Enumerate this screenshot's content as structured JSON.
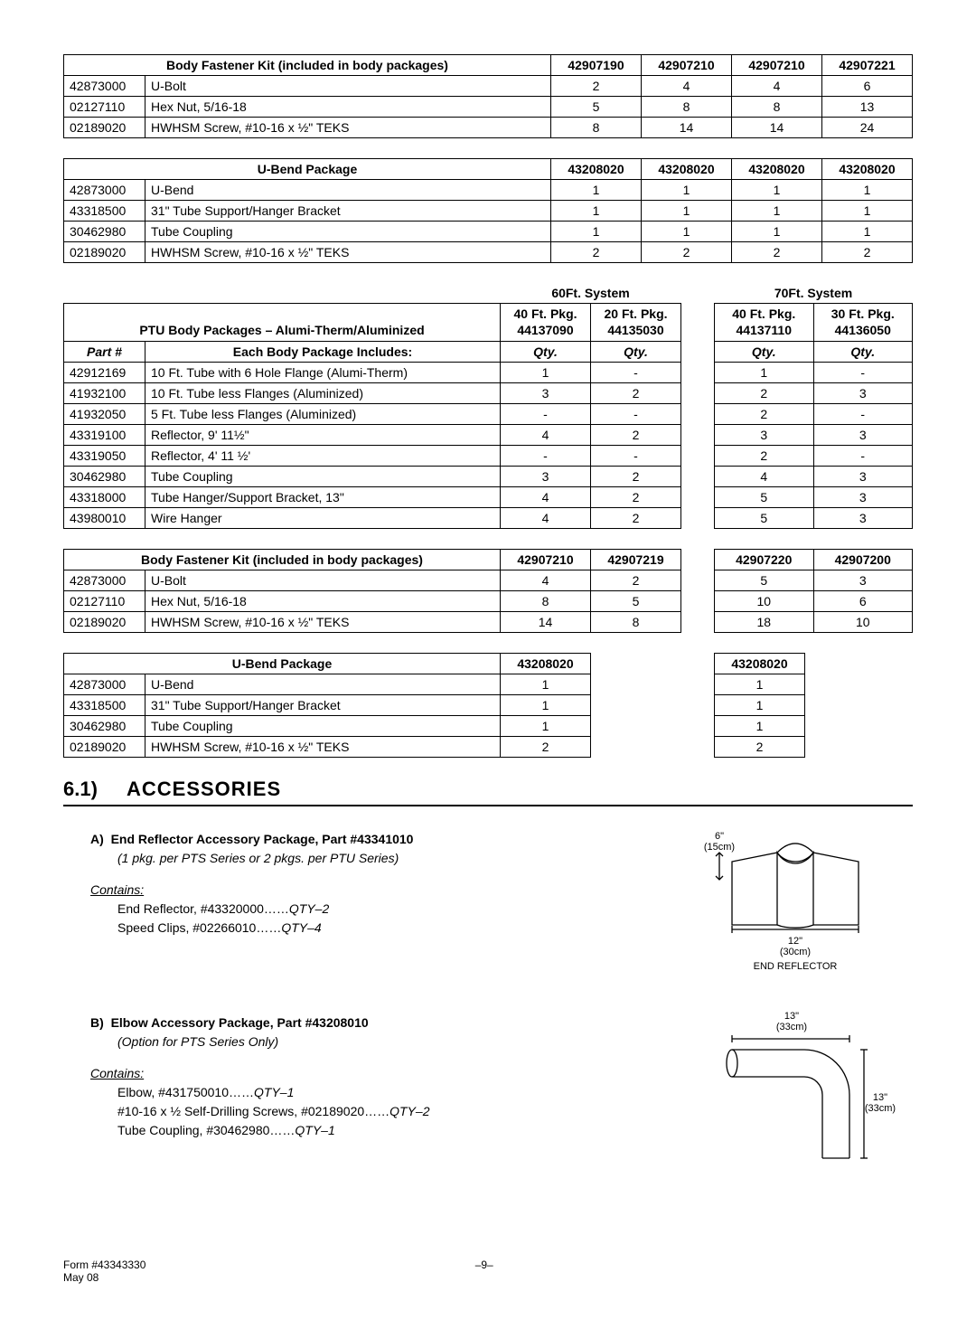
{
  "table1": {
    "title": "Body Fastener Kit (included in body packages)",
    "cols": [
      "42907190",
      "42907210",
      "42907210",
      "42907221"
    ],
    "rows": [
      {
        "pn": "42873000",
        "desc": "U-Bolt",
        "q": [
          "2",
          "4",
          "4",
          "6"
        ]
      },
      {
        "pn": "02127110",
        "desc": "Hex Nut, 5/16-18",
        "q": [
          "5",
          "8",
          "8",
          "13"
        ]
      },
      {
        "pn": "02189020",
        "desc": "HWHSM Screw, #10-16 x ½\" TEKS",
        "q": [
          "8",
          "14",
          "14",
          "24"
        ]
      }
    ]
  },
  "table2": {
    "title": "U-Bend Package",
    "cols": [
      "43208020",
      "43208020",
      "43208020",
      "43208020"
    ],
    "rows": [
      {
        "pn": "42873000",
        "desc": "U-Bend",
        "q": [
          "1",
          "1",
          "1",
          "1"
        ]
      },
      {
        "pn": "43318500",
        "desc": "31\" Tube Support/Hanger Bracket",
        "q": [
          "1",
          "1",
          "1",
          "1"
        ]
      },
      {
        "pn": "30462980",
        "desc": "Tube Coupling",
        "q": [
          "1",
          "1",
          "1",
          "1"
        ]
      },
      {
        "pn": "02189020",
        "desc": "HWHSM Screw, #10-16 x ½\" TEKS",
        "q": [
          "2",
          "2",
          "2",
          "2"
        ]
      }
    ]
  },
  "table3": {
    "superL": "60Ft. System",
    "superR": "70Ft. System",
    "title": "PTU Body Packages – Alumi-Therm/Aluminized",
    "sub": "Each Body Package Includes:",
    "partLabel": "Part #",
    "qtyLabel": "Qty.",
    "pkgL": [
      "40 Ft. Pkg.",
      "20 Ft. Pkg."
    ],
    "idL": [
      "44137090",
      "44135030"
    ],
    "pkgR": [
      "40 Ft. Pkg.",
      "30 Ft. Pkg."
    ],
    "idR": [
      "44137110",
      "44136050"
    ],
    "rows": [
      {
        "pn": "42912169",
        "desc": "10 Ft. Tube with 6 Hole Flange (Alumi-Therm)",
        "l": [
          "1",
          "-"
        ],
        "r": [
          "1",
          "-"
        ]
      },
      {
        "pn": "41932100",
        "desc": "10 Ft. Tube less Flanges (Aluminized)",
        "l": [
          "3",
          "2"
        ],
        "r": [
          "2",
          "3"
        ]
      },
      {
        "pn": "41932050",
        "desc": "5 Ft. Tube less Flanges (Aluminized)",
        "l": [
          "-",
          "-"
        ],
        "r": [
          "2",
          "-"
        ]
      },
      {
        "pn": "43319100",
        "desc": "Reflector, 9' 11½\"",
        "l": [
          "4",
          "2"
        ],
        "r": [
          "3",
          "3"
        ]
      },
      {
        "pn": "43319050",
        "desc": "Reflector, 4' 11 ½'",
        "l": [
          "-",
          "-"
        ],
        "r": [
          "2",
          "-"
        ]
      },
      {
        "pn": "30462980",
        "desc": "Tube Coupling",
        "l": [
          "3",
          "2"
        ],
        "r": [
          "4",
          "3"
        ]
      },
      {
        "pn": "43318000",
        "desc": "Tube Hanger/Support Bracket, 13\"",
        "l": [
          "4",
          "2"
        ],
        "r": [
          "5",
          "3"
        ]
      },
      {
        "pn": "43980010",
        "desc": "Wire Hanger",
        "l": [
          "4",
          "2"
        ],
        "r": [
          "5",
          "3"
        ]
      }
    ]
  },
  "table4": {
    "title": "Body Fastener Kit (included in body packages)",
    "colsL": [
      "42907210",
      "42907219"
    ],
    "colsR": [
      "42907220",
      "42907200"
    ],
    "rows": [
      {
        "pn": "42873000",
        "desc": "U-Bolt",
        "l": [
          "4",
          "2"
        ],
        "r": [
          "5",
          "3"
        ]
      },
      {
        "pn": "02127110",
        "desc": "Hex Nut, 5/16-18",
        "l": [
          "8",
          "5"
        ],
        "r": [
          "10",
          "6"
        ]
      },
      {
        "pn": "02189020",
        "desc": "HWHSM Screw, #10-16 x ½\" TEKS",
        "l": [
          "14",
          "8"
        ],
        "r": [
          "18",
          "10"
        ]
      }
    ]
  },
  "table5": {
    "title": "U-Bend Package",
    "colsL": [
      "43208020"
    ],
    "colsR": [
      "43208020"
    ],
    "rows": [
      {
        "pn": "42873000",
        "desc": "U-Bend",
        "l": [
          "1"
        ],
        "r": [
          "1"
        ]
      },
      {
        "pn": "43318500",
        "desc": "31\" Tube Support/Hanger Bracket",
        "l": [
          "1"
        ],
        "r": [
          "1"
        ]
      },
      {
        "pn": "30462980",
        "desc": "Tube Coupling",
        "l": [
          "1"
        ],
        "r": [
          "1"
        ]
      },
      {
        "pn": "02189020",
        "desc": "HWHSM Screw, #10-16 x ½\" TEKS",
        "l": [
          "2"
        ],
        "r": [
          "2"
        ]
      }
    ]
  },
  "section": {
    "num": "6.1)",
    "title": "ACCESSORIES"
  },
  "accA": {
    "letter": "A)",
    "title": "End Reflector Accessory Package, Part #43341010",
    "note": "(1 pkg. per PTS Series or 2 pkgs. per PTU Series)",
    "contains": "Contains:",
    "lines": [
      {
        "t": "End Reflector, #43320000……",
        "q": "QTY–2"
      },
      {
        "t": "Speed Clips, #02266010……",
        "q": "QTY–4"
      }
    ],
    "dim1": "6\"",
    "dim1m": "(15cm)",
    "dim2": "12\"",
    "dim2m": "(30cm)",
    "cap": "END REFLECTOR"
  },
  "accB": {
    "letter": "B)",
    "title": "Elbow Accessory Package, Part #43208010",
    "note": "(Option for PTS Series Only)",
    "contains": "Contains:",
    "lines": [
      {
        "t": "Elbow, #431750010……",
        "q": "QTY–1"
      },
      {
        "t": "#10-16 x ½ Self-Drilling Screws, #02189020……",
        "q": "QTY–2"
      },
      {
        "t": "Tube Coupling, #30462980……",
        "q": "QTY–1"
      }
    ],
    "dim1": "13\"",
    "dim1m": "(33cm)",
    "dim2": "13\"",
    "dim2m": "(33cm)"
  },
  "footer": {
    "form": "Form #43343330",
    "date": "May 08",
    "page": "–9–"
  }
}
